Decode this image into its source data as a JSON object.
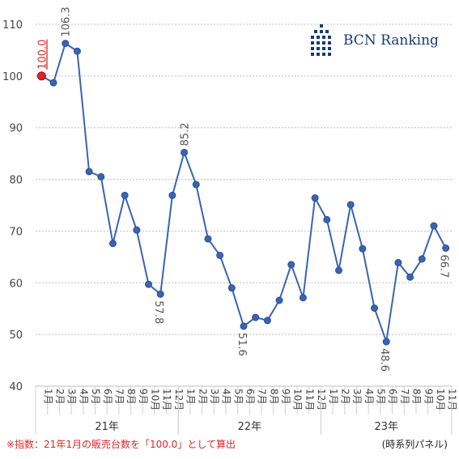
{
  "chart_data": {
    "type": "line",
    "title": "",
    "xlabel": "",
    "ylabel": "",
    "ylim": [
      40,
      110
    ],
    "yticks": [
      40,
      50,
      60,
      70,
      80,
      90,
      100,
      110
    ],
    "grid": "horizontal-dotted",
    "line_color": "#3a64b0",
    "highlight_color": "#d9262b",
    "month_labels": [
      "1月",
      "2月",
      "3月",
      "4月",
      "5月",
      "6月",
      "7月",
      "8月",
      "9月",
      "10月",
      "11月",
      "12月",
      "1月",
      "2月",
      "3月",
      "4月",
      "5月",
      "6月",
      "7月",
      "8月",
      "9月",
      "10月",
      "11月",
      "12月",
      "1月",
      "2月",
      "3月",
      "4月",
      "5月",
      "6月",
      "7月",
      "8月",
      "9月",
      "10月",
      "11月"
    ],
    "year_groups": [
      {
        "label": "21年",
        "start": 0,
        "end": 11
      },
      {
        "label": "22年",
        "start": 12,
        "end": 23
      },
      {
        "label": "23年",
        "start": 24,
        "end": 34
      }
    ],
    "values": [
      100.0,
      98.7,
      106.3,
      104.8,
      81.5,
      80.5,
      67.6,
      76.9,
      70.2,
      59.7,
      57.8,
      76.9,
      85.2,
      79.0,
      68.5,
      65.3,
      59.0,
      51.6,
      53.3,
      52.7,
      56.6,
      63.5,
      57.1,
      76.4,
      72.2,
      62.4,
      75.1,
      66.6,
      55.1,
      48.6,
      63.9,
      61.1,
      64.6,
      71.0,
      66.7
    ],
    "data_labels": [
      {
        "index": 0,
        "text": "100.0",
        "highlight": true
      },
      {
        "index": 2,
        "text": "106.3"
      },
      {
        "index": 10,
        "text": "57.8"
      },
      {
        "index": 12,
        "text": "85.2"
      },
      {
        "index": 17,
        "text": "51.6"
      },
      {
        "index": 29,
        "text": "48.6"
      },
      {
        "index": 34,
        "text": "66.7"
      }
    ]
  },
  "logo": {
    "text": "BCN Ranking",
    "color": "#1a3a6e"
  },
  "footnote": "※指数：21年1月の販売台数を「100.0」として算出",
  "panel_note": "(時系列パネル)"
}
